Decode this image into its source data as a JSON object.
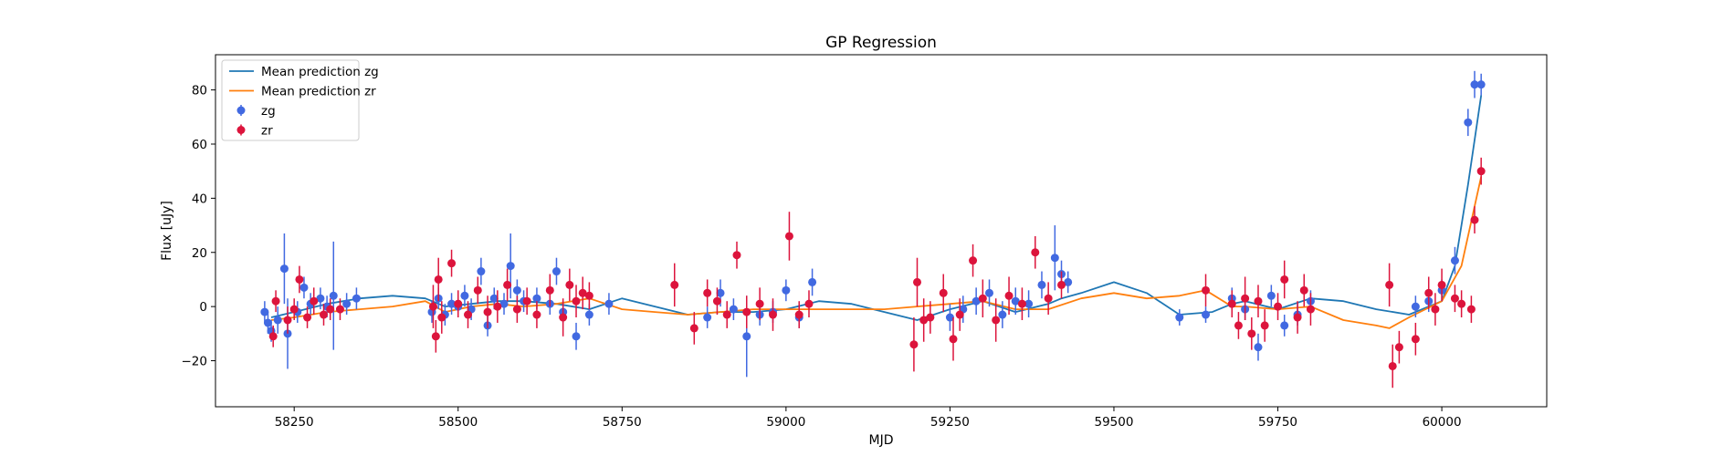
{
  "chart_data": {
    "type": "scatter",
    "title": "GP Regression",
    "xlabel": "MJD",
    "ylabel": "Flux [uJy]",
    "xlim": [
      58130,
      60160
    ],
    "ylim": [
      -37,
      93
    ],
    "xticks": [
      58250,
      58500,
      58750,
      59000,
      59250,
      59500,
      59750,
      60000
    ],
    "yticks": [
      -20,
      0,
      20,
      40,
      60,
      80
    ],
    "legend_position": "upper-left",
    "grid": false,
    "colors": {
      "zg_line": "#1f77b4",
      "zr_line": "#ff7f0e",
      "zg_points": "#4169e1",
      "zr_points": "#dc143c"
    },
    "legend": [
      {
        "label": "Mean prediction zg",
        "kind": "line",
        "series": "zg_line"
      },
      {
        "label": "Mean prediction zr",
        "kind": "line",
        "series": "zr_line"
      },
      {
        "label": "zg",
        "kind": "errorpoint",
        "series": "zg_points"
      },
      {
        "label": "zr",
        "kind": "errorpoint",
        "series": "zr_points"
      }
    ],
    "series": [
      {
        "name": "Mean prediction zg",
        "kind": "line",
        "color": "#1f77b4",
        "x": [
          58215,
          58250,
          58300,
          58350,
          58400,
          58450,
          58480,
          58520,
          58560,
          58600,
          58650,
          58700,
          58750,
          58800,
          58850,
          58900,
          58950,
          59000,
          59050,
          59100,
          59150,
          59200,
          59250,
          59300,
          59350,
          59400,
          59420,
          59450,
          59500,
          59550,
          59600,
          59650,
          59680,
          59700,
          59750,
          59800,
          59850,
          59900,
          59950,
          60000,
          60020,
          60040,
          60060
        ],
        "y": [
          -4,
          -2,
          1,
          3,
          4,
          3,
          0,
          1,
          2,
          2,
          1,
          -1,
          3,
          0,
          -3,
          -2,
          -2,
          -1,
          2,
          1,
          -2,
          -5,
          -1,
          2,
          -2,
          1,
          3,
          5,
          9,
          5,
          -3,
          -2,
          1,
          2,
          -1,
          3,
          2,
          -1,
          -3,
          2,
          15,
          45,
          78
        ]
      },
      {
        "name": "Mean prediction zr",
        "kind": "line",
        "color": "#ff7f0e",
        "x": [
          58215,
          58250,
          58300,
          58350,
          58400,
          58450,
          58480,
          58520,
          58560,
          58600,
          58650,
          58700,
          58750,
          58800,
          58850,
          58900,
          58950,
          59000,
          59050,
          59100,
          59150,
          59200,
          59250,
          59300,
          59350,
          59400,
          59450,
          59500,
          59550,
          59600,
          59640,
          59680,
          59700,
          59750,
          59800,
          59850,
          59900,
          59920,
          59950,
          60000,
          60030,
          60060
        ],
        "y": [
          -5,
          -4,
          -2,
          -1,
          0,
          2,
          -2,
          0,
          1,
          0,
          1,
          3,
          -1,
          -2,
          -3,
          -2,
          -1,
          -1,
          -1,
          -1,
          -1,
          0,
          1,
          2,
          -1,
          -1,
          3,
          5,
          3,
          4,
          6,
          0,
          0,
          -1,
          0,
          -5,
          -7,
          -8,
          -4,
          2,
          15,
          48
        ]
      },
      {
        "name": "zg",
        "kind": "errorbar",
        "color": "#4169e1",
        "x": [
          58205,
          58210,
          58215,
          58225,
          58235,
          58240,
          58255,
          58265,
          58275,
          58290,
          58300,
          58310,
          58330,
          58345,
          58460,
          58470,
          58480,
          58490,
          58500,
          58510,
          58520,
          58535,
          58545,
          58555,
          58570,
          58580,
          58590,
          58600,
          58620,
          58640,
          58650,
          58660,
          58680,
          58700,
          58730,
          58880,
          58900,
          58920,
          58940,
          58960,
          58980,
          59000,
          59020,
          59040,
          59250,
          59270,
          59290,
          59310,
          59330,
          59350,
          59370,
          59390,
          59410,
          59420,
          59430,
          59600,
          59640,
          59680,
          59700,
          59720,
          59740,
          59760,
          59780,
          59800,
          59960,
          59980,
          60000,
          60020,
          60040,
          60050,
          60060
        ],
        "y": [
          -2,
          -6,
          -9,
          -5,
          14,
          -10,
          -2,
          7,
          1,
          3,
          0,
          4,
          1,
          3,
          -2,
          3,
          -3,
          1,
          0,
          4,
          -1,
          13,
          -7,
          3,
          1,
          15,
          6,
          2,
          3,
          1,
          13,
          -2,
          -11,
          -3,
          1,
          -4,
          5,
          -1,
          -11,
          -3,
          -2,
          6,
          -4,
          9,
          -4,
          -1,
          2,
          5,
          -3,
          2,
          1,
          8,
          18,
          12,
          9,
          -4,
          -3,
          3,
          -1,
          -15,
          4,
          -7,
          -3,
          2,
          0,
          2,
          6,
          17,
          68,
          82,
          82
        ],
        "err": [
          4,
          4,
          4,
          5,
          13,
          13,
          4,
          4,
          4,
          4,
          4,
          20,
          4,
          4,
          4,
          4,
          4,
          4,
          4,
          4,
          4,
          5,
          4,
          4,
          4,
          12,
          4,
          4,
          4,
          4,
          5,
          4,
          5,
          4,
          4,
          4,
          5,
          4,
          15,
          4,
          4,
          4,
          4,
          5,
          5,
          5,
          5,
          5,
          5,
          5,
          5,
          5,
          12,
          5,
          4,
          3,
          3,
          4,
          4,
          5,
          4,
          4,
          4,
          4,
          4,
          4,
          4,
          5,
          5,
          5,
          4
        ]
      },
      {
        "name": "zr",
        "kind": "errorbar",
        "color": "#dc143c",
        "x": [
          58218,
          58222,
          58240,
          58250,
          58258,
          58270,
          58280,
          58295,
          58305,
          58320,
          58462,
          58466,
          58470,
          58475,
          58490,
          58500,
          58515,
          58530,
          58545,
          58560,
          58575,
          58590,
          58605,
          58620,
          58640,
          58660,
          58670,
          58680,
          58690,
          58700,
          58830,
          58860,
          58880,
          58895,
          58910,
          58925,
          58940,
          58960,
          58980,
          59005,
          59020,
          59035,
          59195,
          59200,
          59210,
          59220,
          59240,
          59255,
          59265,
          59285,
          59300,
          59320,
          59340,
          59360,
          59380,
          59400,
          59420,
          59640,
          59680,
          59690,
          59700,
          59710,
          59720,
          59730,
          59750,
          59760,
          59780,
          59790,
          59800,
          59920,
          59925,
          59935,
          59960,
          59980,
          59990,
          60000,
          60020,
          60030,
          60045,
          60050,
          60060
        ],
        "y": [
          -11,
          2,
          -5,
          -1,
          10,
          -4,
          2,
          -3,
          -1,
          -1,
          0,
          -11,
          10,
          -4,
          16,
          1,
          -3,
          6,
          -2,
          0,
          8,
          -1,
          2,
          -3,
          6,
          -4,
          8,
          2,
          5,
          4,
          8,
          -8,
          5,
          2,
          -3,
          19,
          -2,
          1,
          -3,
          26,
          -3,
          1,
          -14,
          9,
          -5,
          -4,
          5,
          -12,
          -3,
          17,
          3,
          -5,
          4,
          1,
          20,
          3,
          8,
          6,
          1,
          -7,
          3,
          -10,
          2,
          -7,
          0,
          10,
          -4,
          6,
          -1,
          8,
          -22,
          -15,
          -12,
          5,
          -1,
          8,
          3,
          1,
          -1,
          32,
          50
        ],
        "err": [
          4,
          4,
          5,
          4,
          5,
          4,
          5,
          4,
          4,
          4,
          8,
          6,
          8,
          6,
          5,
          5,
          5,
          5,
          6,
          6,
          6,
          5,
          5,
          5,
          6,
          7,
          6,
          6,
          6,
          5,
          8,
          6,
          5,
          5,
          5,
          5,
          6,
          6,
          6,
          9,
          5,
          5,
          10,
          9,
          8,
          6,
          7,
          8,
          6,
          6,
          7,
          8,
          7,
          6,
          6,
          6,
          5,
          6,
          5,
          5,
          8,
          6,
          6,
          6,
          5,
          7,
          6,
          6,
          6,
          8,
          8,
          6,
          6,
          6,
          6,
          6,
          5,
          5,
          5,
          5,
          5
        ]
      }
    ]
  }
}
